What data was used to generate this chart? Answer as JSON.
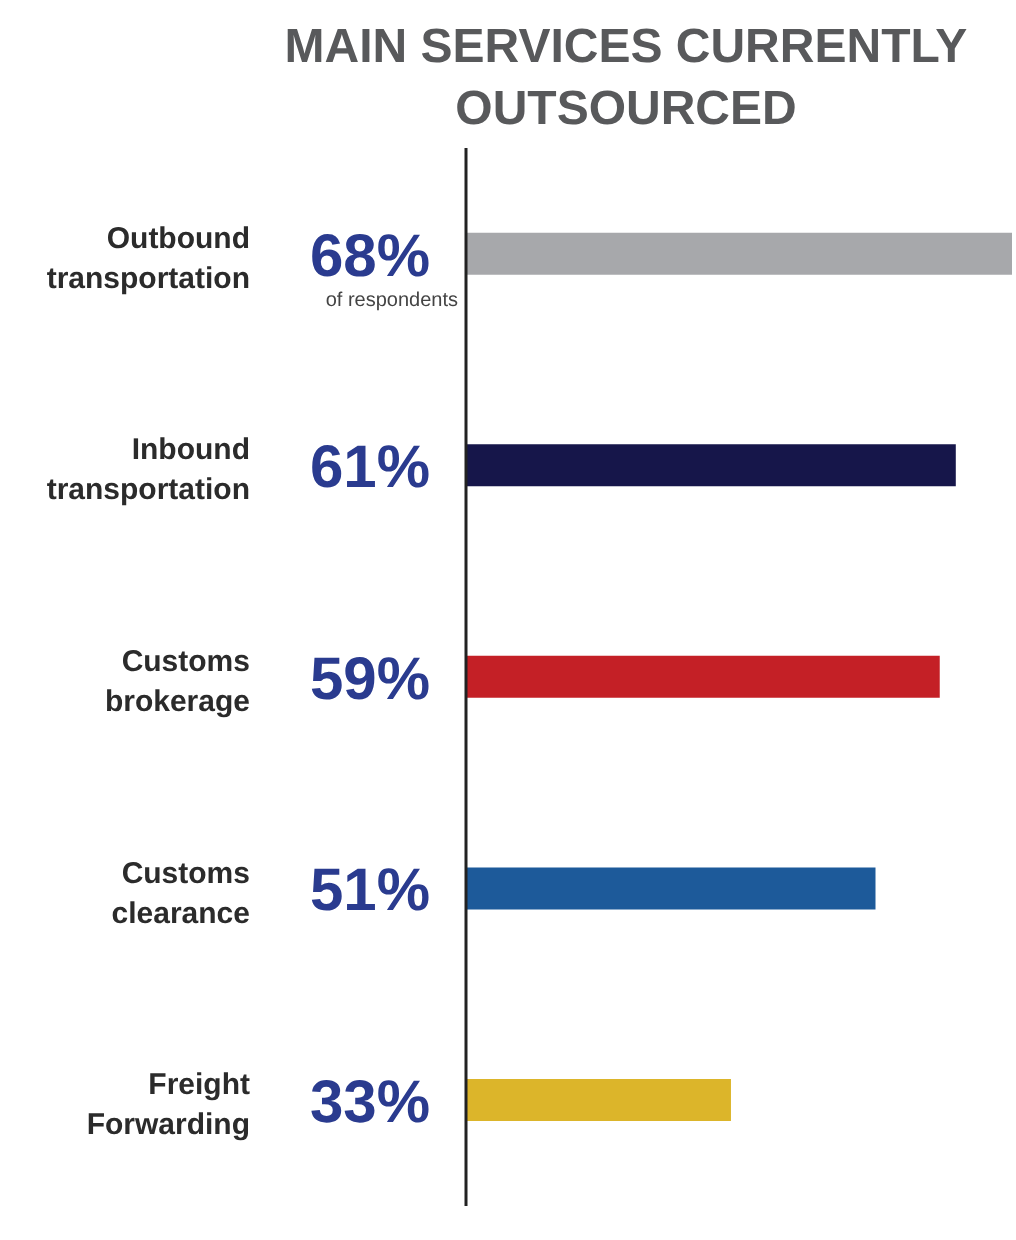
{
  "chart_data": {
    "type": "bar",
    "orientation": "horizontal",
    "title": "MAIN SERVICES CURRENTLY OUTSOURCED",
    "categories": [
      "Outbound transportation",
      "Inbound transportation",
      "Customs brokerage",
      "Customs clearance",
      "Freight Forwarding"
    ],
    "values": [
      68,
      61,
      59,
      51,
      33
    ],
    "colors": [
      "#a7a8ab",
      "#16164a",
      "#c42026",
      "#1d5a9a",
      "#dcb52a"
    ],
    "value_labels": [
      "68%",
      "61%",
      "59%",
      "51%",
      "33%"
    ],
    "annotations": [
      "of respondents"
    ],
    "xlim": [
      0,
      68
    ]
  }
}
